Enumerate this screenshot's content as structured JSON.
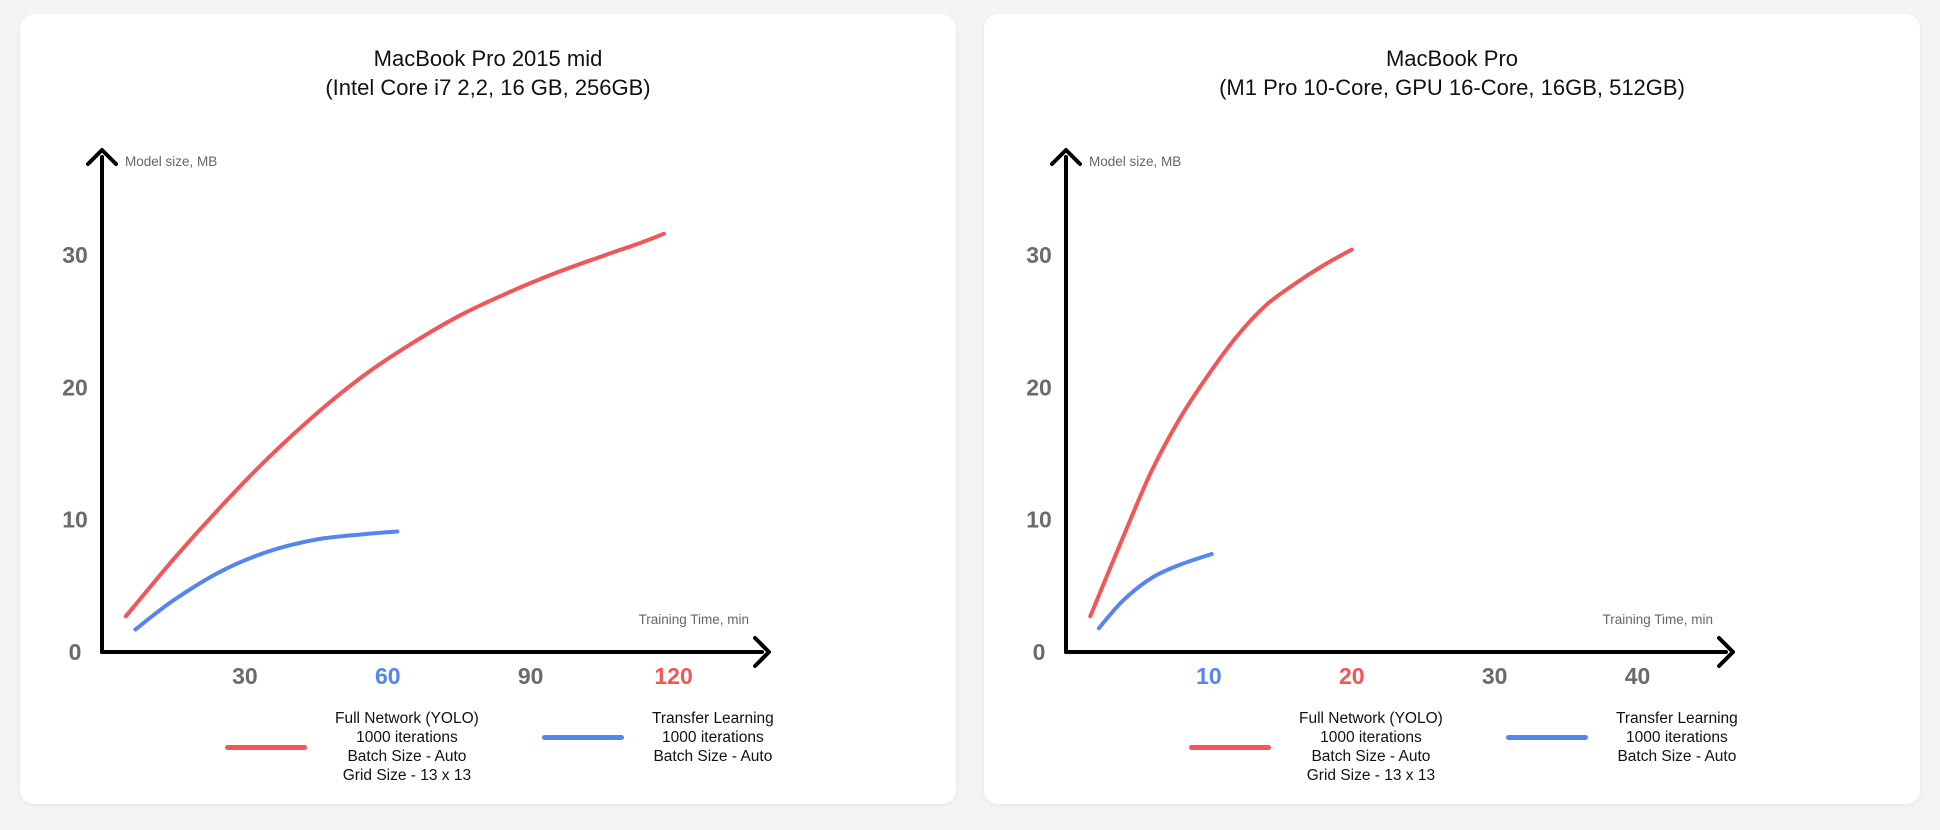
{
  "colors": {
    "full_network": "#f25656",
    "transfer_learning": "#5586f0",
    "axis": "#000000",
    "tick_label": "#6b6b6b"
  },
  "chart_data": [
    {
      "type": "line",
      "title": "MacBook Pro 2015 mid",
      "subtitle": "(Intel Core i7 2,2, 16 GB, 256GB)",
      "xlabel": "Training Time, min",
      "ylabel": "Model size, MB",
      "xlim": [
        0,
        135
      ],
      "ylim": [
        0,
        38
      ],
      "grid": false,
      "x_ticks": [
        {
          "value": 30,
          "label": "30",
          "color": "#6b6b6b"
        },
        {
          "value": 60,
          "label": "60",
          "color": "#5586f0"
        },
        {
          "value": 90,
          "label": "90",
          "color": "#6b6b6b"
        },
        {
          "value": 120,
          "label": "120",
          "color": "#f25656"
        }
      ],
      "y_ticks": [
        {
          "value": 0,
          "label": "0"
        },
        {
          "value": 10,
          "label": "10"
        },
        {
          "value": 20,
          "label": "20"
        },
        {
          "value": 30,
          "label": "30"
        }
      ],
      "series": [
        {
          "legend": [
            "Full Network (YOLO)",
            "1000 iterations",
            "Batch Size - Auto",
            "Grid Size - 13 x 13"
          ],
          "color": "#f25656",
          "x": [
            5,
            15,
            25,
            35,
            45,
            55,
            65,
            75,
            85,
            95,
            105,
            113,
            118
          ],
          "y": [
            2.7,
            7.0,
            11.0,
            14.7,
            18.0,
            20.9,
            23.3,
            25.4,
            27.1,
            28.6,
            29.9,
            30.9,
            31.6
          ]
        },
        {
          "legend": [
            "Transfer Learning",
            "1000 iterations",
            "Batch Size - Auto"
          ],
          "color": "#5586f0",
          "x": [
            7,
            15,
            25,
            35,
            45,
            55,
            62
          ],
          "y": [
            1.7,
            3.9,
            6.1,
            7.6,
            8.5,
            8.9,
            9.1
          ]
        }
      ]
    },
    {
      "type": "line",
      "title": "MacBook Pro",
      "subtitle": "(M1 Pro 10-Core, GPU 16-Core, 16GB, 512GB)",
      "xlabel": "Training Time, min",
      "ylabel": "Model size, MB",
      "xlim": [
        0,
        45
      ],
      "ylim": [
        0,
        38
      ],
      "grid": false,
      "x_ticks": [
        {
          "value": 10,
          "label": "10",
          "color": "#5586f0"
        },
        {
          "value": 20,
          "label": "20",
          "color": "#f25656"
        },
        {
          "value": 30,
          "label": "30",
          "color": "#6b6b6b"
        },
        {
          "value": 40,
          "label": "40",
          "color": "#6b6b6b"
        }
      ],
      "y_ticks": [
        {
          "value": 0,
          "label": "0"
        },
        {
          "value": 10,
          "label": "10"
        },
        {
          "value": 20,
          "label": "20"
        },
        {
          "value": 30,
          "label": "30"
        }
      ],
      "series": [
        {
          "legend": [
            "Full Network (YOLO)",
            "1000 iterations",
            "Batch Size - Auto",
            "Grid Size - 13 x 13"
          ],
          "color": "#f25656",
          "x": [
            1.7,
            4,
            6,
            8,
            10,
            12,
            14,
            16,
            18,
            20
          ],
          "y": [
            2.7,
            8.7,
            13.7,
            17.7,
            21.0,
            23.9,
            26.2,
            27.8,
            29.2,
            30.4
          ]
        },
        {
          "legend": [
            "Transfer Learning",
            "1000 iterations",
            "Batch Size - Auto"
          ],
          "color": "#5586f0",
          "x": [
            2.3,
            4,
            6,
            8,
            10.2
          ],
          "y": [
            1.8,
            3.9,
            5.6,
            6.6,
            7.4
          ]
        }
      ]
    }
  ]
}
